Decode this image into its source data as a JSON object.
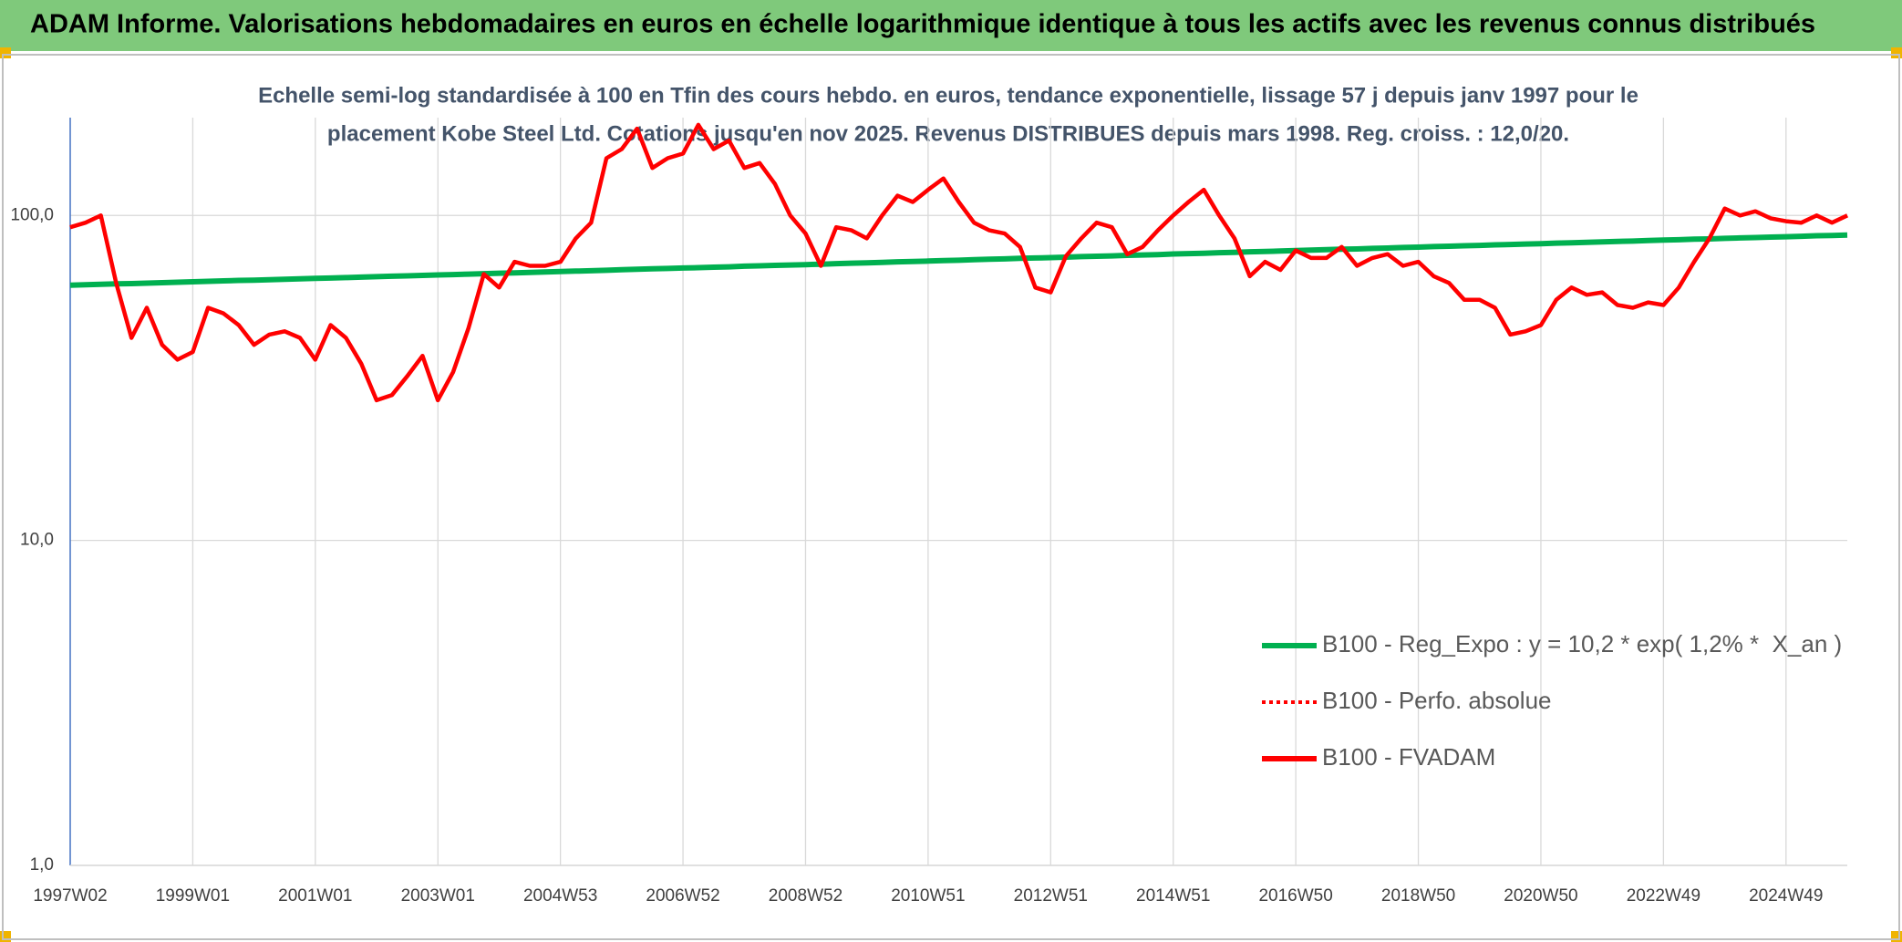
{
  "chart_data": {
    "type": "line",
    "title": "ADAM Informe. Valorisations hebdomadaires en euros en échelle logarithmique identique à tous les actifs avec les revenus connus distribués",
    "subtitle": [
      "Echelle semi-log standardisée à 100 en Tfin des cours hebdo. en euros, tendance exponentielle, lissage 57 j depuis janv 1997 pour le",
      "placement Kobe Steel Ltd. Cotations jusqu'en nov 2025. Revenus DISTRIBUES depuis mars 1998. Reg. croiss. : 12,0/20."
    ],
    "log_scale": true,
    "grid": true,
    "legend": "right",
    "ylim": [
      1,
      200
    ],
    "yticks": [
      {
        "value": 1,
        "label": "1,0"
      },
      {
        "value": 10,
        "label": "10,0"
      },
      {
        "value": 100,
        "label": "100,0"
      }
    ],
    "categories": [
      "1997W02",
      null,
      null,
      null,
      null,
      null,
      null,
      null,
      "1999W01",
      null,
      null,
      null,
      null,
      null,
      null,
      null,
      "2001W01",
      null,
      null,
      null,
      null,
      null,
      null,
      null,
      "2003W01",
      null,
      null,
      null,
      null,
      null,
      null,
      null,
      "2004W53",
      null,
      null,
      null,
      null,
      null,
      null,
      null,
      "2006W52",
      null,
      null,
      null,
      null,
      null,
      null,
      null,
      "2008W52",
      null,
      null,
      null,
      null,
      null,
      null,
      null,
      "2010W51",
      null,
      null,
      null,
      null,
      null,
      null,
      null,
      "2012W51",
      null,
      null,
      null,
      null,
      null,
      null,
      null,
      "2014W51",
      null,
      null,
      null,
      null,
      null,
      null,
      null,
      "2016W50",
      null,
      null,
      null,
      null,
      null,
      null,
      null,
      "2018W50",
      null,
      null,
      null,
      null,
      null,
      null,
      null,
      "2020W50",
      null,
      null,
      null,
      null,
      null,
      null,
      null,
      "2022W49",
      null,
      null,
      null,
      null,
      null,
      null,
      null,
      "2024W49",
      null,
      null,
      null,
      null
    ],
    "series": [
      {
        "name": "B100 - Reg_Expo : y = 10,2 * exp( 1,2% *  X_an )",
        "color": "#00b050",
        "line_style": "solid",
        "values": [
          61.0,
          61.2,
          61.4,
          61.6,
          61.7,
          61.9,
          62.1,
          62.3,
          62.5,
          62.7,
          62.9,
          63.1,
          63.2,
          63.4,
          63.6,
          63.8,
          64.0,
          64.2,
          64.4,
          64.6,
          64.8,
          65.0,
          65.2,
          65.4,
          65.6,
          65.8,
          66.0,
          66.2,
          66.4,
          66.6,
          66.8,
          67.0,
          67.2,
          67.4,
          67.6,
          67.8,
          68.1,
          68.3,
          68.5,
          68.7,
          68.9,
          69.1,
          69.3,
          69.5,
          69.8,
          70.0,
          70.2,
          70.4,
          70.6,
          70.8,
          71.1,
          71.3,
          71.5,
          71.7,
          72.0,
          72.2,
          72.4,
          72.6,
          72.8,
          73.1,
          73.3,
          73.5,
          73.8,
          74.0,
          74.2,
          74.4,
          74.7,
          74.9,
          75.1,
          75.4,
          75.6,
          75.8,
          76.1,
          76.3,
          76.5,
          76.8,
          77.0,
          77.3,
          77.5,
          77.7,
          78.0,
          78.2,
          78.5,
          78.7,
          78.9,
          79.2,
          79.4,
          79.7,
          79.9,
          80.2,
          80.4,
          80.7,
          80.9,
          81.2,
          81.4,
          81.7,
          81.9,
          82.2,
          82.4,
          82.7,
          82.9,
          83.2,
          83.4,
          83.7,
          84.0,
          84.2,
          84.5,
          84.7,
          85.0,
          85.3,
          85.5,
          85.8,
          86.0,
          86.3,
          86.6,
          86.8,
          87.1
        ]
      },
      {
        "name": "B100 - Perfo. absolue",
        "color": "#ff0000",
        "line_style": "dotted",
        "values": [
          92,
          95,
          100,
          62,
          42,
          52,
          40,
          36,
          38,
          52,
          50,
          46,
          40,
          43,
          44,
          42,
          36,
          46,
          42,
          35,
          27,
          28,
          32,
          37,
          27,
          33,
          45,
          66,
          60,
          72,
          70,
          70,
          72,
          85,
          95,
          150,
          160,
          185,
          140,
          150,
          155,
          190,
          160,
          170,
          140,
          145,
          125,
          100,
          88,
          70,
          92,
          90,
          85,
          100,
          115,
          110,
          120,
          130,
          110,
          95,
          90,
          88,
          80,
          60,
          58,
          75,
          85,
          95,
          92,
          76,
          80,
          90,
          100,
          110,
          120,
          100,
          85,
          65,
          72,
          68,
          78,
          74,
          74,
          80,
          70,
          74,
          76,
          70,
          72,
          65,
          62,
          55,
          55,
          52,
          43,
          44,
          46,
          55,
          60,
          57,
          58,
          53,
          52,
          54,
          53,
          60,
          72,
          85,
          105,
          100,
          103,
          98,
          96,
          95,
          100,
          95,
          100
        ]
      },
      {
        "name": "B100 - FVADAM",
        "color": "#ff0000",
        "line_style": "solid",
        "values": [
          92,
          95,
          100,
          62,
          42,
          52,
          40,
          36,
          38,
          52,
          50,
          46,
          40,
          43,
          44,
          42,
          36,
          46,
          42,
          35,
          27,
          28,
          32,
          37,
          27,
          33,
          45,
          66,
          60,
          72,
          70,
          70,
          72,
          85,
          95,
          150,
          160,
          185,
          140,
          150,
          155,
          190,
          160,
          170,
          140,
          145,
          125,
          100,
          88,
          70,
          92,
          90,
          85,
          100,
          115,
          110,
          120,
          130,
          110,
          95,
          90,
          88,
          80,
          60,
          58,
          75,
          85,
          95,
          92,
          76,
          80,
          90,
          100,
          110,
          120,
          100,
          85,
          65,
          72,
          68,
          78,
          74,
          74,
          80,
          70,
          74,
          76,
          70,
          72,
          65,
          62,
          55,
          55,
          52,
          43,
          44,
          46,
          55,
          60,
          57,
          58,
          53,
          52,
          54,
          53,
          60,
          72,
          85,
          105,
          100,
          103,
          98,
          96,
          95,
          100,
          95,
          100
        ]
      }
    ]
  }
}
